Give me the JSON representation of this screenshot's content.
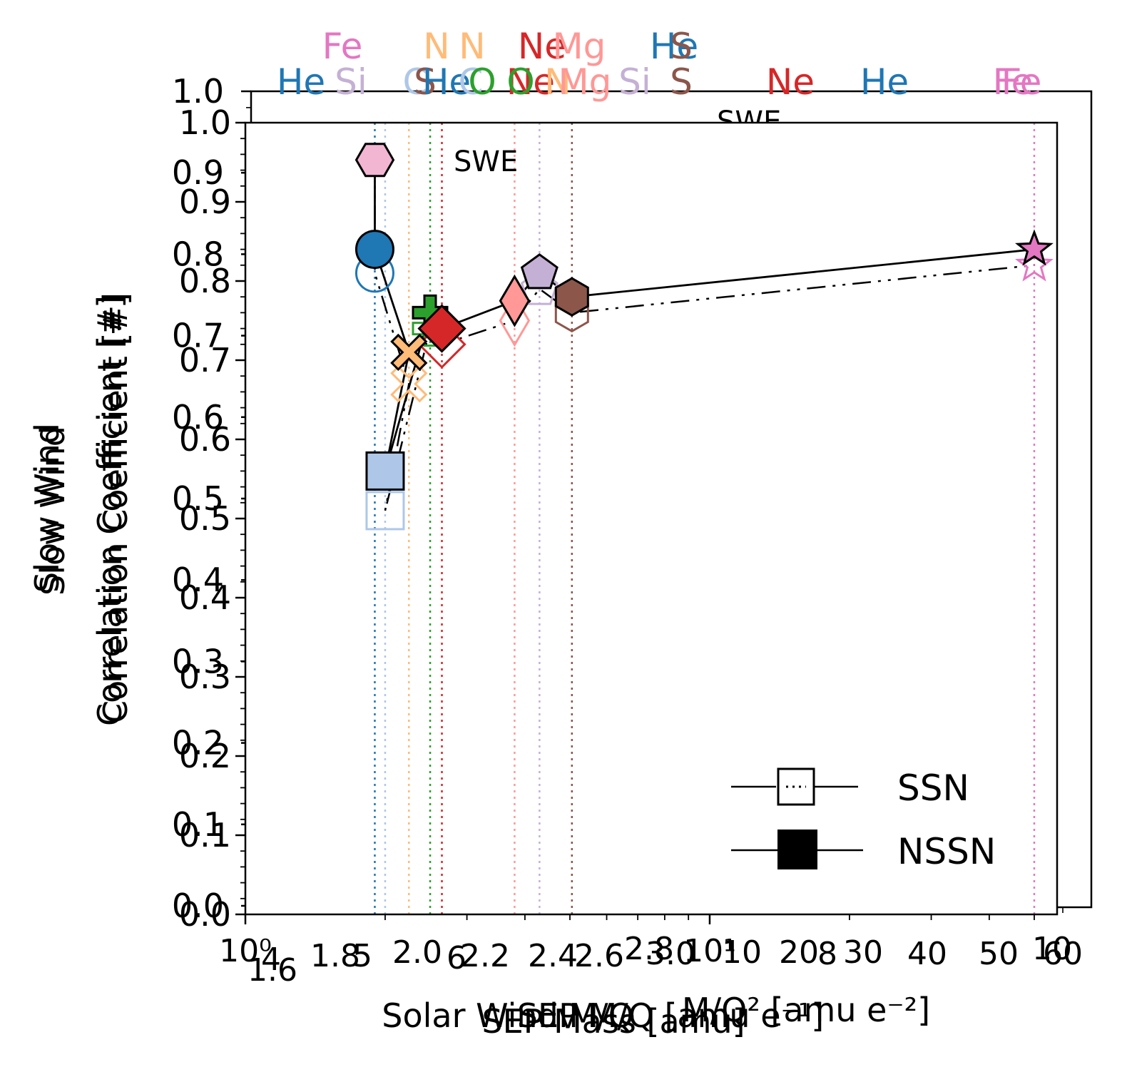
{
  "chart_data": {
    "type": "scatter",
    "x_scale": "log",
    "xlim": [
      1,
      56
    ],
    "ylim": [
      0.0,
      1.0
    ],
    "ylabel_lines": [
      "Slow Wind",
      "Correlation Coefficient [#]"
    ],
    "ylabel_ghost_lines": [
      "Slow Wind",
      "Correlation Coefficient [#]"
    ],
    "xlabel": "Solar Wind M/Q",
    "xlabel_ghost_1": "SEP Mass [amu]",
    "xlabel_ghost_2": "SEP M/Q [amu e⁻¹]",
    "xlabel_ghost_3": "M/Q² [amu e⁻²]",
    "x_tick_labels_main": [
      "10⁰",
      "10¹"
    ],
    "x_tick_labels_ghost": [
      "1.6",
      "1.8",
      "2.0",
      "2.2",
      "2.4",
      "2.6",
      "2.8",
      "3.0",
      "10",
      "20",
      "30",
      "40",
      "50",
      "60",
      "4",
      "5",
      "6",
      "8",
      "10"
    ],
    "y_tick_labels": [
      "0.0",
      "0.1",
      "0.2",
      "0.3",
      "0.4",
      "0.5",
      "0.6",
      "0.7",
      "0.8",
      "0.9",
      "1.0"
    ],
    "y_tick_labels_ghost": [
      "0.0",
      "0.1",
      "0.2",
      "0.3",
      "0.4",
      "0.5",
      "0.6",
      "0.7",
      "0.8",
      "0.9",
      "1.0"
    ],
    "legend": [
      {
        "label": "SSN",
        "style": "open-square-dotted"
      },
      {
        "label": "NSSN",
        "style": "filled-square-solid"
      }
    ],
    "legend_position": "lower-right",
    "swe": {
      "label": "SWE",
      "x": 1.9,
      "y": 0.953,
      "color": "#f2b6d2"
    },
    "swe_ghost_label": "SWE",
    "species": [
      {
        "name": "He",
        "x": 1.9,
        "nssn": 0.84,
        "ssn": 0.81,
        "color": "#1f77b4",
        "marker": "circle"
      },
      {
        "name": "C",
        "x": 2.0,
        "nssn": 0.56,
        "ssn": 0.51,
        "color": "#aec7e8",
        "marker": "square"
      },
      {
        "name": "N",
        "x": 2.25,
        "nssn": 0.71,
        "ssn": 0.67,
        "color": "#ffbb78",
        "marker": "x"
      },
      {
        "name": "O",
        "x": 2.5,
        "nssn": 0.76,
        "ssn": 0.74,
        "color": "#2ca02c",
        "marker": "plus"
      },
      {
        "name": "Ne",
        "x": 2.65,
        "nssn": 0.74,
        "ssn": 0.72,
        "color": "#d62728",
        "marker": "diamond"
      },
      {
        "name": "Mg",
        "x": 3.8,
        "nssn": 0.775,
        "ssn": 0.75,
        "color": "#ff9896",
        "marker": "thin-diamond"
      },
      {
        "name": "Si",
        "x": 4.3,
        "nssn": 0.81,
        "ssn": 0.79,
        "color": "#c5b0d5",
        "marker": "pentagon"
      },
      {
        "name": "S",
        "x": 5.05,
        "nssn": 0.78,
        "ssn": 0.76,
        "color": "#8c564b",
        "marker": "hexagon"
      },
      {
        "name": "Fe",
        "x": 50.0,
        "nssn": 0.84,
        "ssn": 0.82,
        "color": "#e377c2",
        "marker": "star"
      }
    ],
    "top_labels_row1": [
      {
        "name": "He",
        "color": "#1f77b4"
      },
      {
        "name": "Si",
        "color": "#c5b0d5"
      },
      {
        "name": "C",
        "color": "#aec7e8"
      },
      {
        "name": "S",
        "color": "#8c564b"
      },
      {
        "name": "He",
        "color": "#1f77b4"
      },
      {
        "name": "C",
        "color": "#aec7e8"
      },
      {
        "name": "O",
        "color": "#2ca02c"
      },
      {
        "name": "Ne",
        "color": "#d62728"
      },
      {
        "name": "O",
        "color": "#2ca02c"
      },
      {
        "name": "N",
        "color": "#ffbb78"
      },
      {
        "name": "Mg",
        "color": "#ff9896"
      },
      {
        "name": "Si",
        "color": "#c5b0d5"
      },
      {
        "name": "S",
        "color": "#8c564b"
      },
      {
        "name": "Ne",
        "color": "#d62728"
      },
      {
        "name": "He",
        "color": "#1f77b4"
      },
      {
        "name": "Fe",
        "color": "#e377c2"
      },
      {
        "name": "Fe",
        "color": "#e377c2"
      }
    ],
    "top_labels_row2": [
      {
        "name": "Fe",
        "color": "#e377c2"
      },
      {
        "name": "N",
        "color": "#ffbb78"
      },
      {
        "name": "N",
        "color": "#ffbb78"
      },
      {
        "name": "Ne",
        "color": "#d62728"
      },
      {
        "name": "Mg",
        "color": "#ff9896"
      },
      {
        "name": "He",
        "color": "#1f77b4"
      },
      {
        "name": "S",
        "color": "#8c564b"
      }
    ]
  }
}
